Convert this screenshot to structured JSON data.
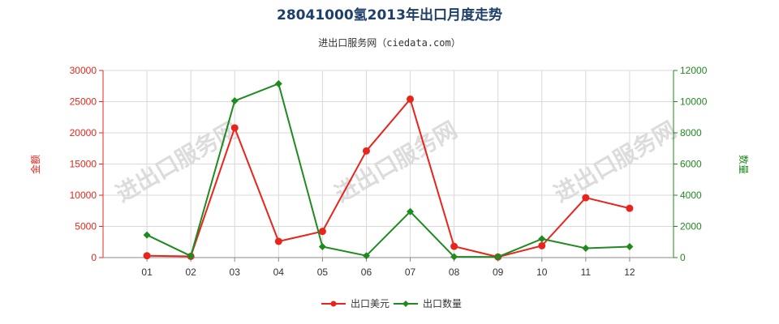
{
  "chart_data": {
    "type": "line",
    "title": "28041000氢2013年出口月度走势",
    "subtitle": "进出口服务网（ciedata.com）",
    "categories": [
      "01",
      "02",
      "03",
      "04",
      "05",
      "06",
      "07",
      "08",
      "09",
      "10",
      "11",
      "12"
    ],
    "y_left": {
      "label": "金额",
      "ylim": [
        0,
        30000
      ],
      "ticks": [
        0,
        5000,
        10000,
        15000,
        20000,
        25000,
        30000
      ],
      "tick_labels": [
        "0",
        "5000",
        "10000",
        "15000",
        "20000",
        "25000",
        "30000"
      ],
      "color": "#e8251c"
    },
    "y_right": {
      "label": "数量",
      "ylim": [
        0,
        12000
      ],
      "ticks": [
        0,
        2000,
        4000,
        6000,
        8000,
        10000,
        12000
      ],
      "tick_labels": [
        "0",
        "2000",
        "4000",
        "6000",
        "8000",
        "10000",
        "12000"
      ],
      "color": "#1f8a1f"
    },
    "series": [
      {
        "name": "出口美元",
        "axis": "left",
        "color": "#e8251c",
        "marker": "circle",
        "values": [
          300,
          200,
          20800,
          2600,
          4200,
          17100,
          25400,
          1800,
          100,
          1900,
          9600,
          7900
        ]
      },
      {
        "name": "出口数量",
        "axis": "right",
        "color": "#1f8a1f",
        "marker": "diamond",
        "values": [
          1450,
          100,
          10050,
          11150,
          700,
          120,
          2950,
          50,
          40,
          1200,
          600,
          700
        ]
      }
    ],
    "grid": true,
    "legend_position": "bottom-center",
    "watermark": "进出口服务网"
  }
}
